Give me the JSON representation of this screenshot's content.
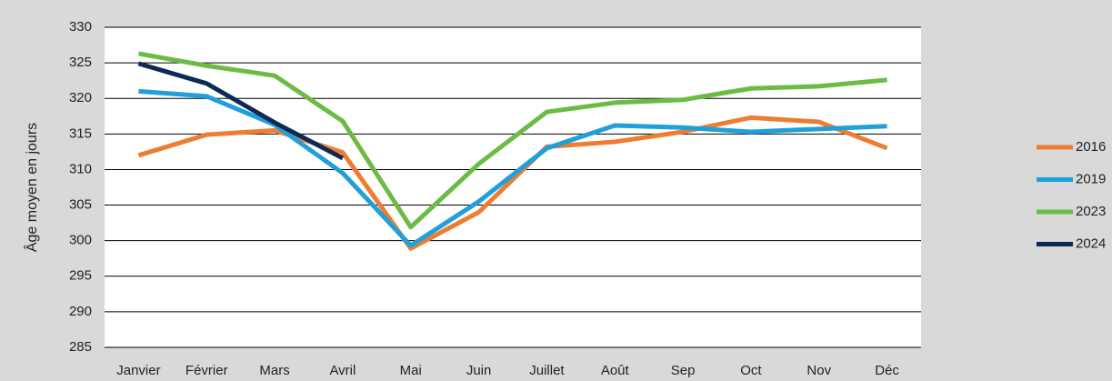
{
  "chart_data": {
    "type": "line",
    "y_label": "Âge moyen en jours",
    "categories": [
      "Janvier",
      "Février",
      "Mars",
      "Avril",
      "Mai",
      "Juin",
      "Juillet",
      "Août",
      "Sep",
      "Oct",
      "Nov",
      "Déc"
    ],
    "series": [
      {
        "name": "2016",
        "color": "#ed7d31",
        "values": [
          312.0,
          314.9,
          315.5,
          312.4,
          298.9,
          304.0,
          313.2,
          313.9,
          315.3,
          317.3,
          316.7,
          313.0
        ]
      },
      {
        "name": "2019",
        "color": "#1fa0da",
        "values": [
          321.0,
          320.3,
          316.3,
          309.5,
          299.3,
          305.5,
          313.0,
          316.2,
          315.9,
          315.3,
          315.7,
          316.1
        ]
      },
      {
        "name": "2023",
        "color": "#6cbb45",
        "values": [
          326.3,
          324.6,
          323.2,
          316.8,
          301.9,
          310.8,
          318.1,
          319.4,
          319.8,
          321.4,
          321.7,
          322.6
        ]
      },
      {
        "name": "2024",
        "color": "#0c2a55",
        "values": [
          324.9,
          322.1,
          316.6,
          311.6,
          null,
          null,
          null,
          null,
          null,
          null,
          null,
          null
        ]
      }
    ],
    "ylim": [
      285,
      330
    ],
    "yticks": [
      285,
      290,
      295,
      300,
      305,
      310,
      315,
      320,
      325,
      330
    ],
    "grid": true,
    "legend": "right"
  }
}
